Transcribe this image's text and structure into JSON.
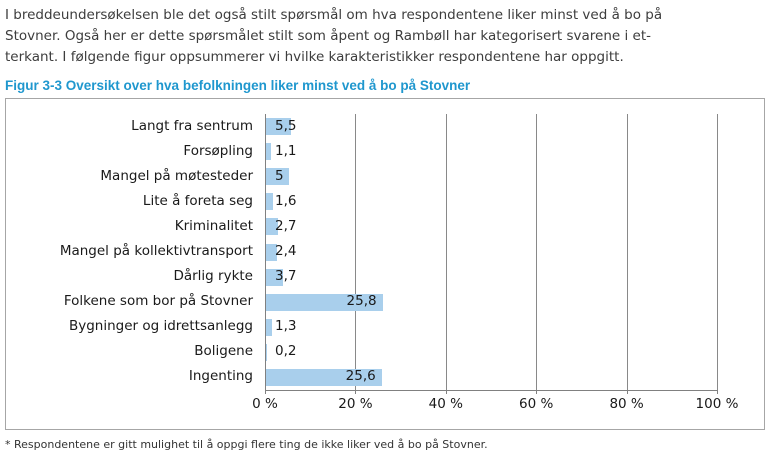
{
  "paragraph": {
    "lines": [
      "I breddeundersøkelsen ble det også stilt spørsmål om hva respondentene liker minst ved å bo på",
      "Stovner. Også her er dette spørsmålet stilt som åpent og Rambøll har kategorisert svarene i et-",
      "terkant. I følgende figur oppsummerer vi hvilke karakteristikker respondentene har oppgitt."
    ]
  },
  "figure": {
    "caption": "Figur 3-3 Oversikt over hva befolkningen liker minst ved å bo på Stovner",
    "caption_color": "#1f97ce"
  },
  "footnote": "* Respondentene er gitt mulighet til å oppgi flere ting de ikke liker ved å bo på Stovner.",
  "chart_data": {
    "type": "bar",
    "orientation": "horizontal",
    "title": "Figur 3-3 Oversikt over hva befolkningen liker minst ved å bo på Stovner",
    "categories": [
      "Langt fra sentrum",
      "Forsøpling",
      "Mangel på møtesteder",
      "Lite å foreta seg",
      "Kriminalitet",
      "Mangel på kollektivtransport",
      "Dårlig rykte",
      "Folkene som bor på Stovner",
      "Bygninger og idrettsanlegg",
      "Boligene",
      "Ingenting"
    ],
    "values": [
      5.5,
      1.1,
      5,
      1.6,
      2.7,
      2.4,
      3.7,
      25.8,
      1.3,
      0.2,
      25.6
    ],
    "value_labels": [
      "5,5",
      "1,1",
      "5",
      "1,6",
      "2,7",
      "2,4",
      "3,7",
      "25,8",
      "1,3",
      "0,2",
      "25,6"
    ],
    "x_tick_labels": [
      "0 %",
      "20 %",
      "40 %",
      "60 %",
      "80 %",
      "100 %"
    ],
    "x_tick_values": [
      0,
      20,
      40,
      60,
      80,
      100
    ],
    "xlim": [
      0,
      100
    ],
    "grid": true,
    "legend": false,
    "bar_color": "#a9cfec",
    "gridline_color": "#898989",
    "axis_color": "#808080"
  }
}
